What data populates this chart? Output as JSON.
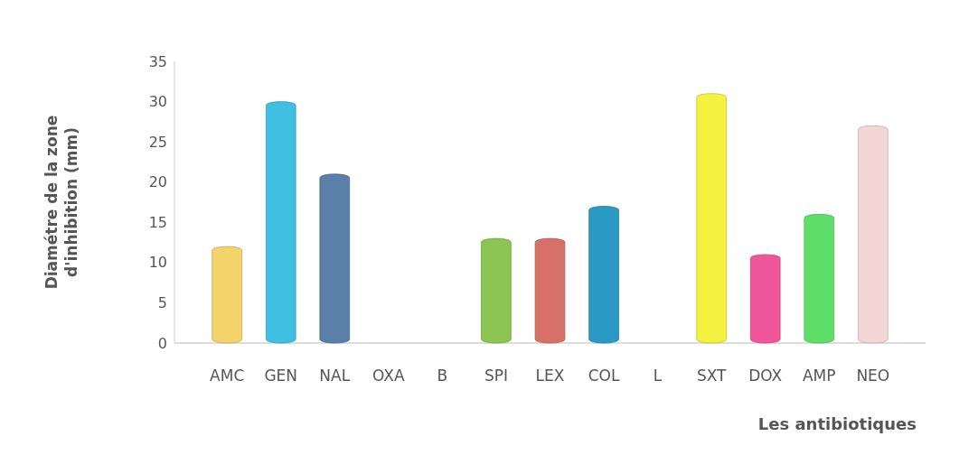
{
  "chart_data": {
    "type": "bar",
    "xlabel": "Les antibiotiques",
    "ylabel": "Diamétre de la zone d'inhibition (mm)",
    "categories": [
      "AMC",
      "GEN",
      "NAL",
      "OXA",
      "B",
      "SPI",
      "LEX",
      "COL",
      "L",
      "SXT",
      "DOX",
      "AMP",
      "NEO"
    ],
    "values": [
      12,
      30,
      21,
      0,
      0,
      13,
      13,
      17,
      0,
      31,
      11,
      16,
      27
    ],
    "colors": [
      "#f2d46a",
      "#3fc0e2",
      "#5a7fa8",
      "#3a9bc0",
      "#3a9bc0",
      "#8cc552",
      "#d8706a",
      "#2a9ac4",
      "#2a9ac4",
      "#f4f23e",
      "#f0569a",
      "#5ddf6a",
      "#f5d6d6"
    ],
    "ylim": [
      0,
      35
    ],
    "yticks": [
      0,
      5,
      10,
      15,
      20,
      25,
      30,
      35
    ],
    "grid": false
  }
}
